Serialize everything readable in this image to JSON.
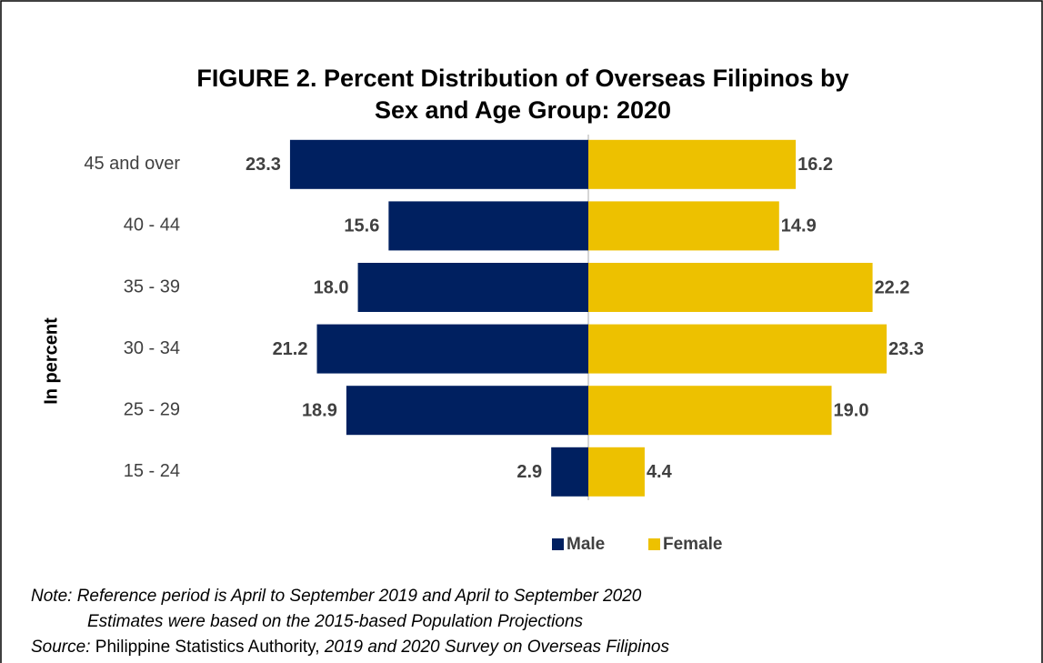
{
  "chart_data": {
    "type": "pyramid",
    "title": [
      "FIGURE 2. Percent Distribution of Overseas Filipinos by",
      "Sex and Age Group: 2020"
    ],
    "y_label": "In percent",
    "categories": [
      "45 and over",
      "40 - 44",
      "35 - 39",
      "30 - 34",
      "25 - 29",
      "15 - 24"
    ],
    "xlim": [
      -25,
      25
    ],
    "series": [
      {
        "name": "Male",
        "color": "#002060",
        "values": [
          23.3,
          15.6,
          18.0,
          21.2,
          18.9,
          2.9
        ],
        "value_labels": [
          "23.3",
          "15.6",
          "18.0",
          "21.2",
          "18.9",
          "2.9"
        ]
      },
      {
        "name": "Female",
        "color": "#edc100",
        "values": [
          16.2,
          14.9,
          22.2,
          23.3,
          19.0,
          4.4
        ],
        "value_labels": [
          "16.2",
          "14.9",
          "22.2",
          "23.3",
          "19.0",
          "4.4"
        ]
      }
    ],
    "note": [
      "Note: Reference period is April to September 2019 and April to September 2020",
      "Estimates were based on the 2015-based Population Projections"
    ],
    "source": {
      "label": "Source:",
      "text": "Philippine Statistics Authority,",
      "title": "2019 and 2020 Survey on Overseas Filipinos"
    }
  }
}
